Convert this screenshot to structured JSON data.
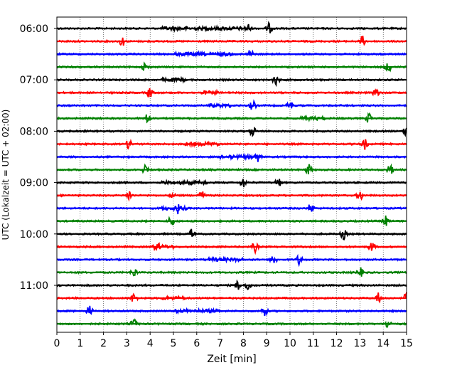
{
  "chart_data": {
    "type": "line",
    "title": "",
    "xlabel": "Zeit  [min]",
    "ylabel": "UTC (Lokalzeit = UTC + 02:00)",
    "xlim": [
      0,
      15
    ],
    "x_ticks": [
      "0",
      "1",
      "2",
      "3",
      "4",
      "5",
      "6",
      "7",
      "8",
      "9",
      "10",
      "11",
      "12",
      "13",
      "14",
      "15"
    ],
    "y_ticks": [
      {
        "label": "06:00",
        "trace": 0
      },
      {
        "label": "07:00",
        "trace": 4
      },
      {
        "label": "08:00",
        "trace": 8
      },
      {
        "label": "09:00",
        "trace": 12
      },
      {
        "label": "10:00",
        "trace": 16
      },
      {
        "label": "11:00",
        "trace": 20
      }
    ],
    "grid": "vertical dotted at each minute",
    "trace_interval_min": 15,
    "color_cycle": [
      "#000000",
      "#ff0000",
      "#0000ff",
      "#008000"
    ],
    "traces": [
      {
        "start": "06:00",
        "events_min": [
          8.2,
          9.1
        ],
        "busy_min": [
          [
            4.5,
            8.0
          ]
        ]
      },
      {
        "start": "06:15",
        "events_min": [
          2.8,
          13.1
        ],
        "busy_min": []
      },
      {
        "start": "06:30",
        "events_min": [
          8.3
        ],
        "busy_min": [
          [
            5.0,
            7.5
          ]
        ]
      },
      {
        "start": "06:45",
        "events_min": [
          3.8,
          14.2
        ],
        "busy_min": []
      },
      {
        "start": "07:00",
        "events_min": [
          9.4
        ],
        "busy_min": [
          [
            4.5,
            5.5
          ]
        ]
      },
      {
        "start": "07:15",
        "events_min": [
          4.0,
          13.7
        ],
        "busy_min": [
          [
            6.2,
            7.0
          ]
        ]
      },
      {
        "start": "07:30",
        "events_min": [
          8.4,
          10.0
        ],
        "busy_min": [
          [
            6.5,
            7.5
          ]
        ]
      },
      {
        "start": "07:45",
        "events_min": [
          3.9,
          13.4
        ],
        "busy_min": [
          [
            10.3,
            11.5
          ]
        ]
      },
      {
        "start": "08:00",
        "events_min": [
          8.4,
          15.0
        ],
        "busy_min": []
      },
      {
        "start": "08:15",
        "events_min": [
          3.1,
          13.2
        ],
        "busy_min": [
          [
            5.5,
            7.0
          ]
        ]
      },
      {
        "start": "08:30",
        "events_min": [
          8.6
        ],
        "busy_min": [
          [
            7.0,
            8.8
          ]
        ]
      },
      {
        "start": "08:45",
        "events_min": [
          3.8,
          10.8,
          14.3
        ],
        "busy_min": []
      },
      {
        "start": "09:00",
        "events_min": [
          8.0,
          9.5
        ],
        "busy_min": [
          [
            4.5,
            6.5
          ]
        ]
      },
      {
        "start": "09:15",
        "events_min": [
          3.1,
          6.2,
          13.0
        ],
        "busy_min": [
          [
            4.8,
            5.2
          ],
          [
            6.0,
            6.4
          ]
        ]
      },
      {
        "start": "09:30",
        "events_min": [
          5.2,
          10.9
        ],
        "busy_min": [
          [
            4.5,
            5.6
          ]
        ]
      },
      {
        "start": "09:45",
        "events_min": [
          4.9,
          14.1
        ],
        "busy_min": []
      },
      {
        "start": "10:00",
        "events_min": [
          5.8,
          12.3
        ],
        "busy_min": []
      },
      {
        "start": "10:15",
        "events_min": [
          4.3,
          8.5,
          13.5
        ],
        "busy_min": [
          [
            4.0,
            5.0
          ]
        ]
      },
      {
        "start": "10:30",
        "events_min": [
          9.3,
          10.4
        ],
        "busy_min": [
          [
            6.5,
            8.0
          ]
        ]
      },
      {
        "start": "10:45",
        "events_min": [
          3.3,
          13.0
        ],
        "busy_min": []
      },
      {
        "start": "11:00",
        "events_min": [
          7.8,
          8.2
        ],
        "busy_min": []
      },
      {
        "start": "11:15",
        "events_min": [
          3.3,
          13.8,
          15.0
        ],
        "busy_min": [
          [
            4.5,
            5.5
          ]
        ]
      },
      {
        "start": "11:30",
        "events_min": [
          1.4,
          8.9
        ],
        "busy_min": [
          [
            5.0,
            7.0
          ]
        ]
      },
      {
        "start": "11:45",
        "events_min": [
          3.3,
          14.2
        ],
        "busy_min": []
      }
    ]
  }
}
